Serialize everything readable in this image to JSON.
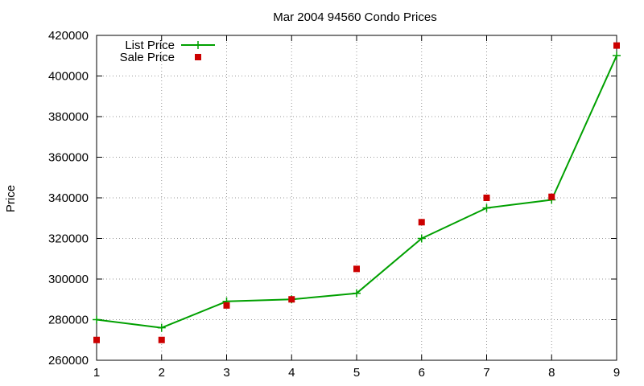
{
  "chart_data": {
    "type": "line",
    "title": "Mar 2004 94560 Condo Prices",
    "xlabel": "",
    "ylabel": "Price",
    "xlim": [
      1,
      9
    ],
    "ylim": [
      260000,
      420000
    ],
    "x_ticks": [
      1,
      2,
      3,
      4,
      5,
      6,
      7,
      8,
      9
    ],
    "y_ticks": [
      260000,
      280000,
      300000,
      320000,
      340000,
      360000,
      380000,
      400000,
      420000
    ],
    "grid": true,
    "legend_position": "top-left",
    "series": [
      {
        "name": "List Price",
        "style": "line-with-plus-markers",
        "color": "#00a000",
        "x": [
          1,
          2,
          3,
          4,
          5,
          6,
          7,
          8,
          9
        ],
        "values": [
          280000,
          276000,
          289000,
          290000,
          293000,
          320000,
          335000,
          339000,
          410000
        ]
      },
      {
        "name": "Sale Price",
        "style": "square-markers",
        "color": "#cc0000",
        "x": [
          1,
          2,
          3,
          4,
          5,
          6,
          7,
          8,
          9
        ],
        "values": [
          270000,
          270000,
          287000,
          290000,
          305000,
          328000,
          340000,
          340500,
          415000
        ]
      }
    ]
  }
}
